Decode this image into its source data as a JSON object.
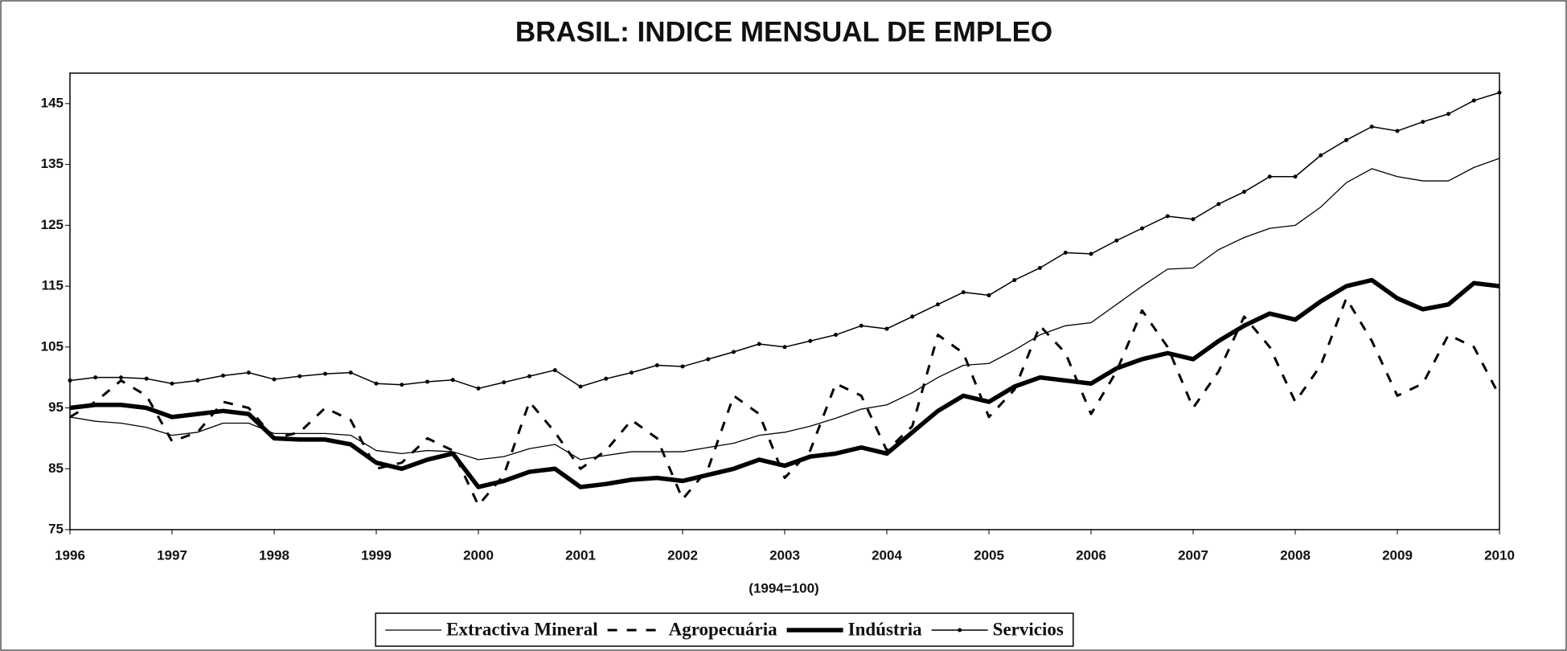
{
  "chart_data": {
    "type": "line",
    "title": "BRASIL: INDICE MENSUAL DE EMPLEO",
    "x_label": "(1994=100)",
    "xlim": [
      1996,
      2010
    ],
    "xticks": [
      1996,
      1997,
      1998,
      1999,
      2000,
      2001,
      2002,
      2003,
      2004,
      2005,
      2006,
      2007,
      2008,
      2009,
      2010
    ],
    "ylim": [
      75,
      150
    ],
    "yticks": [
      75,
      85,
      95,
      105,
      115,
      125,
      135,
      145
    ],
    "grid": false,
    "legend": "bottom",
    "x": [
      1996,
      1996.25,
      1996.5,
      1996.75,
      1997,
      1997.25,
      1997.5,
      1997.75,
      1998,
      1998.25,
      1998.5,
      1998.75,
      1999,
      1999.25,
      1999.5,
      1999.75,
      2000,
      2000.25,
      2000.5,
      2000.75,
      2001,
      2001.25,
      2001.5,
      2001.75,
      2002,
      2002.25,
      2002.5,
      2002.75,
      2003,
      2003.25,
      2003.5,
      2003.75,
      2004,
      2004.25,
      2004.5,
      2004.75,
      2005,
      2005.25,
      2005.5,
      2005.75,
      2006,
      2006.25,
      2006.5,
      2006.75,
      2007,
      2007.25,
      2007.5,
      2007.75,
      2008,
      2008.25,
      2008.5,
      2008.75,
      2009,
      2009.25,
      2009.5,
      2009.75,
      2010
    ],
    "series": [
      {
        "name": "Extractiva Mineral",
        "color": "#000000",
        "width": 1.3,
        "style": "solid",
        "markers": false,
        "values": [
          93.5,
          92.8,
          92.5,
          91.8,
          90.5,
          91,
          92.5,
          92.5,
          90.8,
          90.8,
          90.8,
          90.5,
          88,
          87.5,
          88,
          87.8,
          86.5,
          87,
          88.3,
          89,
          86.5,
          87.2,
          87.8,
          87.8,
          87.8,
          88.5,
          89.2,
          90.5,
          91,
          92,
          93.3,
          94.8,
          95.5,
          97.5,
          100,
          102,
          102.3,
          104.5,
          107,
          108.5,
          109,
          112,
          115,
          117.8,
          118,
          121,
          123,
          124.5,
          125,
          128,
          132,
          134.3,
          133,
          132.3,
          132.3,
          134.5,
          136
        ]
      },
      {
        "name": "Agropecuária",
        "color": "#000000",
        "width": 3,
        "style": "dashed",
        "markers": false,
        "values": [
          93.5,
          96,
          99.5,
          97,
          89.5,
          91,
          96,
          95,
          90,
          91,
          95,
          93,
          85,
          86,
          90,
          88,
          79,
          84,
          96,
          91,
          85,
          88,
          93,
          90,
          80,
          85,
          97,
          94,
          83.5,
          88,
          99,
          97,
          88,
          92,
          107,
          104,
          93.5,
          98,
          108.5,
          104,
          94,
          101,
          111,
          105,
          95,
          101,
          110,
          105,
          96,
          102,
          113,
          106,
          97,
          99,
          107,
          105,
          97
        ]
      },
      {
        "name": "Indústria",
        "color": "#000000",
        "width": 5.5,
        "style": "solid",
        "markers": false,
        "values": [
          95,
          95.5,
          95.5,
          95,
          93.5,
          94,
          94.5,
          94,
          90,
          89.8,
          89.8,
          89,
          86,
          85,
          86.5,
          87.5,
          82,
          83,
          84.5,
          85,
          82,
          82.5,
          83.2,
          83.5,
          83,
          84,
          85,
          86.5,
          85.5,
          87,
          87.5,
          88.5,
          87.5,
          91,
          94.5,
          97,
          96,
          98.5,
          100,
          99.5,
          99,
          101.5,
          103,
          104,
          103,
          106,
          108.5,
          110.5,
          109.5,
          112.5,
          115,
          116,
          113,
          111.2,
          112,
          115.5,
          115
        ]
      },
      {
        "name": "Servicios",
        "color": "#000000",
        "width": 1.5,
        "style": "solid",
        "markers": true,
        "values": [
          99.5,
          100,
          100,
          99.8,
          99,
          99.5,
          100.3,
          100.8,
          99.7,
          100.2,
          100.6,
          100.8,
          99,
          98.8,
          99.3,
          99.6,
          98.2,
          99.2,
          100.2,
          101.2,
          98.5,
          99.8,
          100.8,
          102,
          101.8,
          103,
          104.2,
          105.5,
          105,
          106,
          107,
          108.5,
          108,
          110,
          112,
          114,
          113.5,
          116,
          118,
          120.5,
          120.3,
          122.5,
          124.5,
          126.5,
          126,
          128.5,
          130.5,
          133,
          133,
          136.5,
          139,
          141.2,
          140.5,
          142,
          143.3,
          145.5,
          146.8
        ]
      }
    ]
  }
}
